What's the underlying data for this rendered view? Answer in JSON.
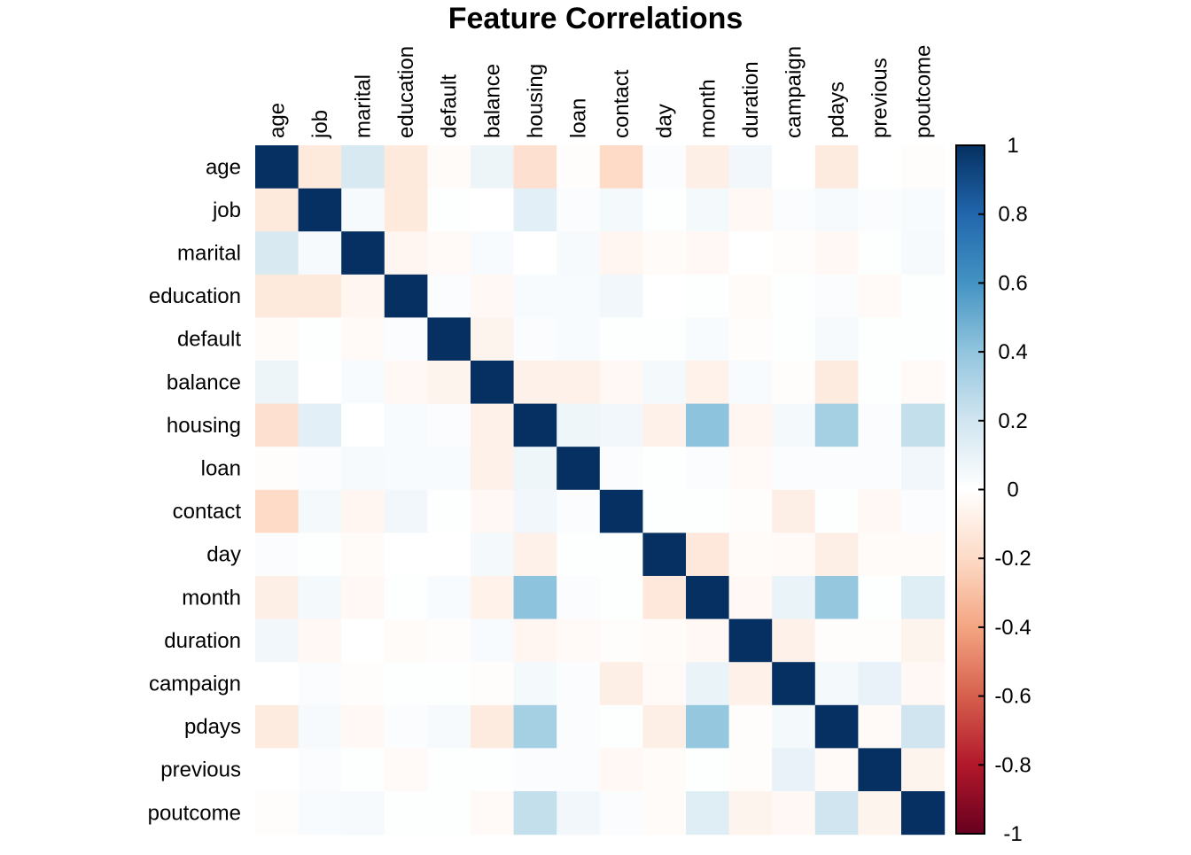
{
  "chart_data": {
    "type": "heatmap",
    "title": "Feature Correlations",
    "variables": [
      "age",
      "job",
      "marital",
      "education",
      "default",
      "balance",
      "housing",
      "loan",
      "contact",
      "day",
      "month",
      "duration",
      "campaign",
      "pdays",
      "previous",
      "poutcome"
    ],
    "matrix": [
      [
        1.0,
        -0.12,
        0.17,
        -0.12,
        -0.02,
        0.08,
        -0.17,
        -0.01,
        -0.2,
        0.02,
        -0.09,
        0.06,
        0.0,
        -0.11,
        0.0,
        -0.01
      ],
      [
        -0.12,
        1.0,
        0.04,
        -0.12,
        0.01,
        0.0,
        0.12,
        0.02,
        0.05,
        0.01,
        0.05,
        -0.04,
        0.02,
        0.04,
        0.02,
        0.03
      ],
      [
        0.17,
        0.04,
        1.0,
        -0.05,
        -0.03,
        0.03,
        0.0,
        0.04,
        -0.05,
        -0.02,
        -0.04,
        0.0,
        -0.01,
        -0.04,
        0.01,
        0.04
      ],
      [
        -0.12,
        -0.12,
        -0.05,
        1.0,
        0.02,
        -0.04,
        0.03,
        0.03,
        0.06,
        0.0,
        0.01,
        -0.02,
        0.01,
        0.02,
        -0.03,
        0.01
      ],
      [
        -0.02,
        0.01,
        -0.03,
        0.02,
        1.0,
        -0.06,
        0.02,
        0.03,
        0.01,
        0.01,
        0.03,
        -0.01,
        0.01,
        0.04,
        0.01,
        0.01
      ],
      [
        0.08,
        0.0,
        0.03,
        -0.04,
        -0.06,
        1.0,
        -0.08,
        -0.08,
        -0.04,
        0.05,
        -0.07,
        0.03,
        -0.01,
        -0.11,
        0.01,
        -0.03
      ],
      [
        -0.17,
        0.12,
        0.0,
        0.03,
        0.02,
        -0.08,
        1.0,
        0.07,
        0.06,
        -0.08,
        0.41,
        -0.05,
        0.05,
        0.34,
        0.02,
        0.24
      ],
      [
        -0.01,
        0.02,
        0.04,
        0.03,
        0.03,
        -0.08,
        0.07,
        1.0,
        0.02,
        0.01,
        0.02,
        -0.03,
        0.02,
        0.02,
        0.02,
        0.06
      ],
      [
        -0.2,
        0.05,
        -0.05,
        0.06,
        0.01,
        -0.04,
        0.06,
        0.02,
        1.0,
        0.01,
        0.01,
        -0.01,
        -0.09,
        0.01,
        -0.04,
        0.02
      ],
      [
        0.02,
        0.01,
        -0.02,
        0.0,
        0.0,
        0.05,
        -0.08,
        0.01,
        0.01,
        1.0,
        -0.13,
        -0.02,
        -0.03,
        -0.09,
        -0.02,
        -0.02
      ],
      [
        -0.09,
        0.05,
        -0.04,
        0.01,
        0.03,
        -0.07,
        0.41,
        0.02,
        0.01,
        -0.13,
        1.0,
        -0.04,
        0.09,
        0.39,
        0.01,
        0.14
      ],
      [
        0.06,
        -0.04,
        0.0,
        -0.02,
        -0.01,
        0.03,
        -0.05,
        -0.03,
        -0.01,
        -0.02,
        -0.04,
        1.0,
        -0.08,
        -0.01,
        -0.01,
        -0.06
      ],
      [
        0.0,
        0.02,
        -0.01,
        0.01,
        0.01,
        -0.01,
        0.05,
        0.02,
        -0.09,
        -0.03,
        0.09,
        -0.08,
        1.0,
        0.05,
        0.1,
        -0.04
      ],
      [
        -0.11,
        0.04,
        -0.04,
        0.02,
        0.04,
        -0.11,
        0.34,
        0.02,
        0.01,
        -0.09,
        0.39,
        -0.01,
        0.05,
        1.0,
        -0.03,
        0.2
      ],
      [
        0.0,
        0.02,
        0.01,
        -0.03,
        0.01,
        0.01,
        0.02,
        0.02,
        -0.04,
        -0.02,
        0.01,
        -0.01,
        0.1,
        -0.03,
        1.0,
        -0.06
      ],
      [
        -0.01,
        0.03,
        0.04,
        0.01,
        0.01,
        -0.03,
        0.24,
        0.06,
        0.02,
        -0.02,
        0.14,
        -0.06,
        -0.04,
        0.2,
        -0.06,
        1.0
      ]
    ],
    "color_scale": {
      "min": -1,
      "max": 1,
      "ticks": [
        "1",
        "0.8",
        "0.6",
        "0.4",
        "0.2",
        "0",
        "-0.2",
        "-0.4",
        "-0.6",
        "-0.8",
        "-1"
      ],
      "colors": [
        "#67001F",
        "#B2182B",
        "#D6604D",
        "#F4A582",
        "#FDDBC7",
        "#FFFFFF",
        "#D1E5F0",
        "#92C5DE",
        "#4393C3",
        "#2166AC",
        "#053061"
      ]
    }
  }
}
